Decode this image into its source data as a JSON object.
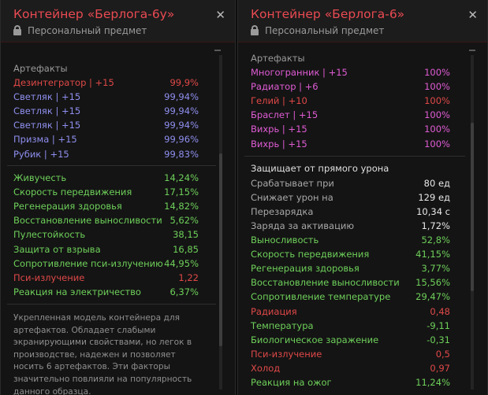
{
  "left": {
    "title": "Контейнер «Берлога-6у»",
    "subtitle": "Персональный предмет",
    "partial_row": {
      "label": "",
      "value": ""
    },
    "artifacts_header": "Артефакты",
    "artifacts": [
      {
        "name": "Дезинтегратор | +15",
        "value": "99,9%",
        "color": "#e04848"
      },
      {
        "name": "Светляк | +15",
        "value": "99,94%",
        "color": "#8f8ff0"
      },
      {
        "name": "Светляк | +15",
        "value": "99,94%",
        "color": "#8f8ff0"
      },
      {
        "name": "Светляк | +15",
        "value": "99,94%",
        "color": "#8f8ff0"
      },
      {
        "name": "Призма | +15",
        "value": "99,96%",
        "color": "#8f8ff0"
      },
      {
        "name": "Рубик | +15",
        "value": "99,83%",
        "color": "#8f8ff0"
      }
    ],
    "stats": [
      {
        "name": "Живучесть",
        "value": "14,24%",
        "color": "#6ed05a"
      },
      {
        "name": "Скорость передвижения",
        "value": "17,15%",
        "color": "#6ed05a"
      },
      {
        "name": "Регенерация здоровья",
        "value": "14,82%",
        "color": "#6ed05a"
      },
      {
        "name": "Восстановление выносливости",
        "value": "5,62%",
        "color": "#6ed05a"
      },
      {
        "name": "Пулестойкость",
        "value": "38,15",
        "color": "#6ed05a"
      },
      {
        "name": "Защита от взрыва",
        "value": "16,85",
        "color": "#6ed05a"
      },
      {
        "name": "Сопротивление пси-излучению",
        "value": "44,95%",
        "color": "#6ed05a"
      },
      {
        "name": "Пси-излучение",
        "value": "1,22",
        "color": "#e04848"
      },
      {
        "name": "Реакция на электричество",
        "value": "6,37%",
        "color": "#6ed05a"
      }
    ],
    "description": "Укрепленная модель контейнера для артефактов. Обладает слабыми экранирующими свойствами, но легок в производстве, надежен и позволяет носить 6 артефактов. Эти факторы значительно повлияли на популярность данного образца."
  },
  "right": {
    "title": "Контейнер «Берлога-6»",
    "subtitle": "Персональный предмет",
    "artifacts_header": "Артефакты",
    "artifacts": [
      {
        "name": "Многогранник | +15",
        "value": "100%",
        "color": "#e05cd5"
      },
      {
        "name": "Радиатор | +6",
        "value": "100%",
        "color": "#e05cd5"
      },
      {
        "name": "Гелий | +10",
        "value": "100%",
        "color": "#e04848"
      },
      {
        "name": "Браслет | +15",
        "value": "100%",
        "color": "#e05cd5"
      },
      {
        "name": "Вихрь | +15",
        "value": "100%",
        "color": "#e05cd5"
      },
      {
        "name": "Вихрь | +15",
        "value": "100%",
        "color": "#e05cd5"
      }
    ],
    "shield_title": "Защищает от прямого урона",
    "shield_stats": [
      {
        "name": "Срабатывает при",
        "value": "80 ед"
      },
      {
        "name": "Снижает урон на",
        "value": "129 ед"
      },
      {
        "name": "Перезарядка",
        "value": "10,34 с"
      },
      {
        "name": "Заряда за активацию",
        "value": "1,72%"
      }
    ],
    "stats": [
      {
        "name": "Выносливость",
        "value": "52,8%",
        "color": "#6ed05a"
      },
      {
        "name": "Скорость передвижения",
        "value": "41,15%",
        "color": "#6ed05a"
      },
      {
        "name": "Регенерация здоровья",
        "value": "3,77%",
        "color": "#6ed05a"
      },
      {
        "name": "Восстановление выносливости",
        "value": "15,56%",
        "color": "#6ed05a"
      },
      {
        "name": "Сопротивление температуре",
        "value": "29,47%",
        "color": "#6ed05a"
      },
      {
        "name": "Радиация",
        "value": "0,48",
        "color": "#e04848"
      },
      {
        "name": "Температура",
        "value": "-9,11",
        "color": "#6ed05a"
      },
      {
        "name": "Биологическое заражение",
        "value": "-0,31",
        "color": "#6ed05a"
      },
      {
        "name": "Пси-излучение",
        "value": "0,5",
        "color": "#e04848"
      },
      {
        "name": "Холод",
        "value": "0,97",
        "color": "#e04848"
      },
      {
        "name": "Реакция на ожог",
        "value": "11,24%",
        "color": "#6ed05a"
      }
    ]
  }
}
